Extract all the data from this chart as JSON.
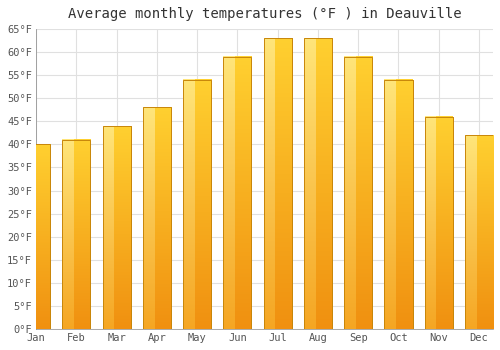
{
  "title": "Average monthly temperatures (°F ) in Deauville",
  "months": [
    "Jan",
    "Feb",
    "Mar",
    "Apr",
    "May",
    "Jun",
    "Jul",
    "Aug",
    "Sep",
    "Oct",
    "Nov",
    "Dec"
  ],
  "values": [
    40,
    41,
    44,
    48,
    54,
    59,
    63,
    63,
    59,
    54,
    46,
    42
  ],
  "bar_color_bottom": "#F5A623",
  "bar_color_top": "#FFD84D",
  "bar_color_left": "#FFE57A",
  "bar_edge_color": "#C8860A",
  "ylim": [
    0,
    65
  ],
  "yticks": [
    0,
    5,
    10,
    15,
    20,
    25,
    30,
    35,
    40,
    45,
    50,
    55,
    60,
    65
  ],
  "ytick_labels": [
    "0°F",
    "5°F",
    "10°F",
    "15°F",
    "20°F",
    "25°F",
    "30°F",
    "35°F",
    "40°F",
    "45°F",
    "50°F",
    "55°F",
    "60°F",
    "65°F"
  ],
  "bg_color": "#FFFFFF",
  "grid_color": "#E0E0E0",
  "title_fontsize": 10,
  "tick_fontsize": 7.5,
  "font_family": "monospace",
  "tick_color": "#555555",
  "title_color": "#333333"
}
